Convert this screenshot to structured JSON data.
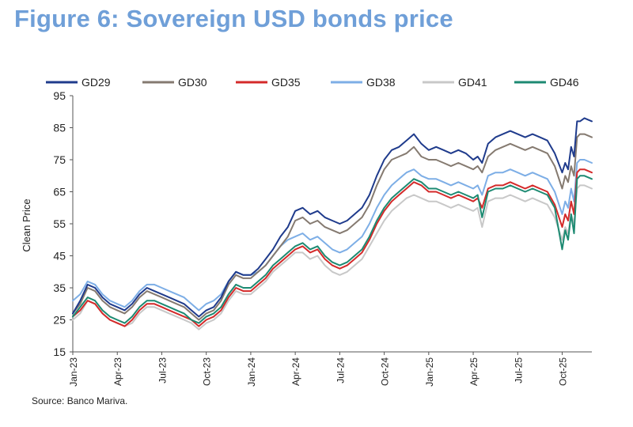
{
  "figure_title": "Figure 6: Sovereign USD bonds price",
  "source": "Source: Banco Mariva.",
  "chart_data": {
    "type": "line",
    "title": "",
    "xlabel": "",
    "ylabel": "Clean Price",
    "ylim": [
      15,
      95
    ],
    "yticks": [
      15,
      25,
      35,
      45,
      55,
      65,
      75,
      85,
      95
    ],
    "grid": false,
    "legend": "top",
    "x_unit": "months since Jan-23",
    "xlim": [
      0,
      35
    ],
    "xticks": [
      {
        "x": 0,
        "label": "Jan-23"
      },
      {
        "x": 3,
        "label": "Apr-23"
      },
      {
        "x": 6,
        "label": "Jul-23"
      },
      {
        "x": 9,
        "label": "Oct-23"
      },
      {
        "x": 12,
        "label": "Jan-24"
      },
      {
        "x": 15,
        "label": "Apr-24"
      },
      {
        "x": 18,
        "label": "Jul-24"
      },
      {
        "x": 21,
        "label": "Oct-24"
      },
      {
        "x": 24,
        "label": "Jan-25"
      },
      {
        "x": 27,
        "label": "Apr-25"
      },
      {
        "x": 30,
        "label": "Jul-25"
      },
      {
        "x": 33,
        "label": "Oct-25"
      }
    ],
    "x": [
      0,
      0.5,
      1,
      1.5,
      2,
      2.5,
      3,
      3.5,
      4,
      4.5,
      5,
      5.5,
      6,
      6.5,
      7,
      7.5,
      8,
      8.5,
      9,
      9.5,
      10,
      10.5,
      11,
      11.5,
      12,
      12.5,
      13,
      13.5,
      14,
      14.5,
      15,
      15.5,
      16,
      16.5,
      17,
      17.5,
      18,
      18.5,
      19,
      19.5,
      20,
      20.5,
      21,
      21.5,
      22,
      22.5,
      23,
      23.5,
      24,
      24.5,
      25,
      25.5,
      26,
      26.5,
      27,
      27.3,
      27.6,
      28,
      28.5,
      29,
      29.5,
      30,
      30.5,
      31,
      31.5,
      32,
      32.5,
      33,
      33.2,
      33.4,
      33.6,
      33.8,
      34,
      34.2,
      34.5,
      35
    ],
    "series": [
      {
        "name": "GD29",
        "color": "#1f3b8c",
        "values": [
          27,
          31,
          36,
          35,
          32,
          30,
          29,
          28,
          30,
          33,
          35,
          34,
          33,
          32,
          31,
          30,
          28,
          26,
          28,
          29,
          32,
          37,
          40,
          39,
          39,
          41,
          44,
          47,
          51,
          54,
          59,
          60,
          58,
          59,
          57,
          56,
          55,
          56,
          58,
          60,
          64,
          70,
          75,
          78,
          79,
          81,
          83,
          80,
          78,
          79,
          78,
          77,
          78,
          77,
          75,
          76,
          74,
          80,
          82,
          83,
          84,
          83,
          82,
          83,
          82,
          81,
          77,
          71,
          74,
          72,
          79,
          76,
          87,
          87,
          88,
          87
        ]
      },
      {
        "name": "GD30",
        "color": "#857a70",
        "values": [
          27,
          30,
          35,
          34,
          31,
          29,
          28,
          27,
          29,
          32,
          34,
          33,
          32,
          31,
          30,
          29,
          27,
          25,
          27,
          28,
          31,
          36,
          39,
          38,
          38,
          40,
          42,
          45,
          48,
          51,
          56,
          57,
          55,
          56,
          54,
          53,
          52,
          53,
          55,
          57,
          61,
          67,
          72,
          75,
          76,
          77,
          79,
          76,
          75,
          75,
          74,
          73,
          74,
          73,
          72,
          73,
          71,
          76,
          78,
          79,
          80,
          79,
          78,
          79,
          78,
          77,
          73,
          66,
          70,
          68,
          73,
          70,
          82,
          83,
          83,
          82
        ]
      },
      {
        "name": "GD35",
        "color": "#d42a2a",
        "values": [
          26,
          28,
          31,
          30,
          27,
          25,
          24,
          23,
          25,
          28,
          30,
          30,
          29,
          28,
          27,
          26,
          25,
          23,
          25,
          26,
          28,
          32,
          35,
          34,
          34,
          36,
          38,
          41,
          43,
          45,
          47,
          48,
          46,
          47,
          44,
          42,
          41,
          42,
          44,
          46,
          50,
          55,
          59,
          62,
          64,
          66,
          68,
          67,
          65,
          65,
          64,
          63,
          64,
          63,
          62,
          63,
          60,
          66,
          67,
          67,
          68,
          67,
          66,
          67,
          66,
          65,
          61,
          54,
          58,
          56,
          62,
          58,
          71,
          72,
          72,
          71
        ]
      },
      {
        "name": "GD38",
        "color": "#7daee6",
        "values": [
          31,
          33,
          37,
          36,
          33,
          31,
          30,
          29,
          31,
          34,
          36,
          36,
          35,
          34,
          33,
          32,
          30,
          28,
          30,
          31,
          33,
          37,
          40,
          39,
          39,
          40,
          42,
          45,
          48,
          50,
          51,
          52,
          50,
          51,
          49,
          47,
          46,
          47,
          49,
          51,
          55,
          60,
          64,
          67,
          69,
          71,
          72,
          70,
          69,
          69,
          68,
          67,
          68,
          67,
          66,
          67,
          64,
          70,
          71,
          71,
          72,
          71,
          70,
          71,
          70,
          69,
          65,
          58,
          62,
          60,
          66,
          62,
          74,
          75,
          75,
          74
        ]
      },
      {
        "name": "GD41",
        "color": "#c8c8c8",
        "values": [
          25,
          27,
          31,
          30,
          27,
          25,
          24,
          23,
          24,
          27,
          29,
          29,
          28,
          27,
          26,
          25,
          24,
          22,
          24,
          25,
          27,
          31,
          34,
          33,
          33,
          35,
          37,
          40,
          42,
          44,
          46,
          46,
          44,
          45,
          42,
          40,
          39,
          40,
          42,
          44,
          48,
          52,
          56,
          59,
          61,
          63,
          64,
          63,
          62,
          62,
          61,
          60,
          61,
          60,
          59,
          60,
          54,
          62,
          63,
          63,
          64,
          63,
          62,
          63,
          62,
          61,
          57,
          50,
          54,
          52,
          58,
          55,
          66,
          67,
          67,
          66
        ]
      },
      {
        "name": "GD46",
        "color": "#1d8a72",
        "values": [
          26,
          29,
          32,
          31,
          28,
          26,
          25,
          24,
          26,
          29,
          31,
          31,
          30,
          29,
          28,
          27,
          25,
          24,
          26,
          27,
          29,
          33,
          36,
          35,
          35,
          37,
          39,
          42,
          44,
          46,
          48,
          49,
          47,
          48,
          45,
          43,
          42,
          43,
          45,
          47,
          51,
          56,
          60,
          63,
          65,
          67,
          69,
          68,
          66,
          66,
          65,
          64,
          65,
          64,
          63,
          64,
          57,
          65,
          66,
          66,
          67,
          66,
          65,
          66,
          65,
          64,
          60,
          47,
          53,
          50,
          58,
          52,
          69,
          70,
          70,
          69
        ]
      }
    ]
  }
}
